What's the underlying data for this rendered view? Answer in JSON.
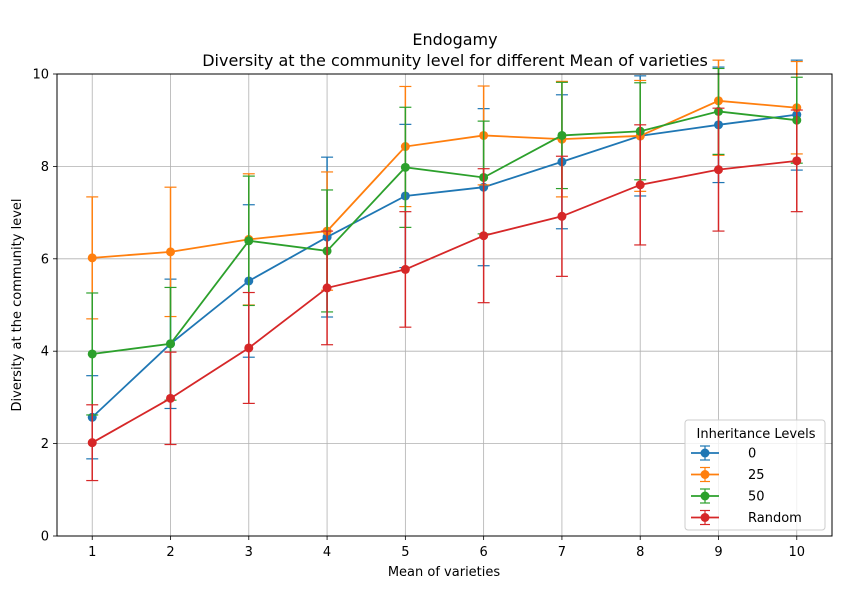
{
  "chart_data": {
    "type": "line",
    "title": "Endogamy",
    "subtitle": "Diversity at the community level for different Mean of varieties",
    "xlabel": "Mean of varieties",
    "ylabel": "Diversity at the community level",
    "x": [
      1,
      2,
      3,
      4,
      5,
      6,
      7,
      8,
      9,
      10
    ],
    "xticks": [
      "1",
      "2",
      "3",
      "4",
      "5",
      "6",
      "7",
      "8",
      "9",
      "10"
    ],
    "yticks": [
      "0",
      "2",
      "4",
      "6",
      "8",
      "10"
    ],
    "xlim": [
      0.55,
      10.45
    ],
    "ylim": [
      0,
      10
    ],
    "grid": true,
    "legend": {
      "title": "Inheritance Levels",
      "placement": "lower-right"
    },
    "series": [
      {
        "name": "0",
        "color": "#1f77b4",
        "values": [
          2.57,
          4.16,
          5.52,
          6.47,
          7.36,
          7.55,
          8.1,
          8.66,
          8.9,
          9.12
        ],
        "errors": [
          0.9,
          1.4,
          1.65,
          1.73,
          1.55,
          1.7,
          1.45,
          1.3,
          1.25,
          1.2
        ]
      },
      {
        "name": "25",
        "color": "#ff7f0e",
        "values": [
          6.02,
          6.15,
          6.42,
          6.6,
          8.43,
          8.67,
          8.59,
          8.66,
          9.42,
          9.27
        ],
        "errors": [
          1.32,
          1.4,
          1.42,
          1.28,
          1.3,
          1.07,
          1.25,
          1.2,
          1.18,
          1.0
        ]
      },
      {
        "name": "50",
        "color": "#2ca02c",
        "values": [
          3.94,
          4.16,
          6.39,
          6.17,
          7.98,
          7.76,
          8.67,
          8.76,
          9.19,
          9.0
        ],
        "errors": [
          1.32,
          1.22,
          1.4,
          1.32,
          1.3,
          1.22,
          1.15,
          1.05,
          0.93,
          0.93
        ]
      },
      {
        "name": "Random",
        "color": "#d62728",
        "values": [
          2.02,
          2.98,
          4.07,
          5.37,
          5.77,
          6.5,
          6.92,
          7.6,
          7.93,
          8.12
        ],
        "errors": [
          0.82,
          1.0,
          1.2,
          1.23,
          1.25,
          1.45,
          1.3,
          1.3,
          1.33,
          1.1
        ]
      }
    ]
  }
}
